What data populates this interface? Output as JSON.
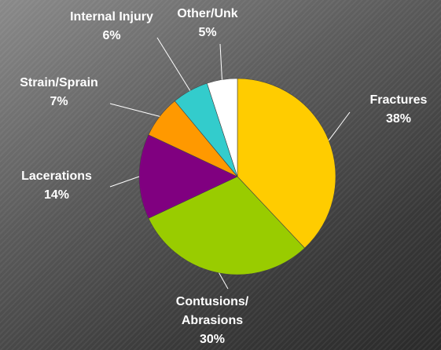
{
  "chart_data": {
    "type": "pie",
    "categories": [
      "Fractures",
      "Contusions/ Abrasions",
      "Lacerations",
      "Strain/Sprain",
      "Internal Injury",
      "Other/Unk"
    ],
    "values": [
      38,
      30,
      14,
      7,
      6,
      5
    ],
    "value_labels": [
      "38%",
      "30%",
      "14%",
      "7%",
      "6%",
      "5%"
    ],
    "colors": [
      "#ffcc00",
      "#99cc00",
      "#800080",
      "#ff9900",
      "#33cccc",
      "#ffffff"
    ]
  }
}
